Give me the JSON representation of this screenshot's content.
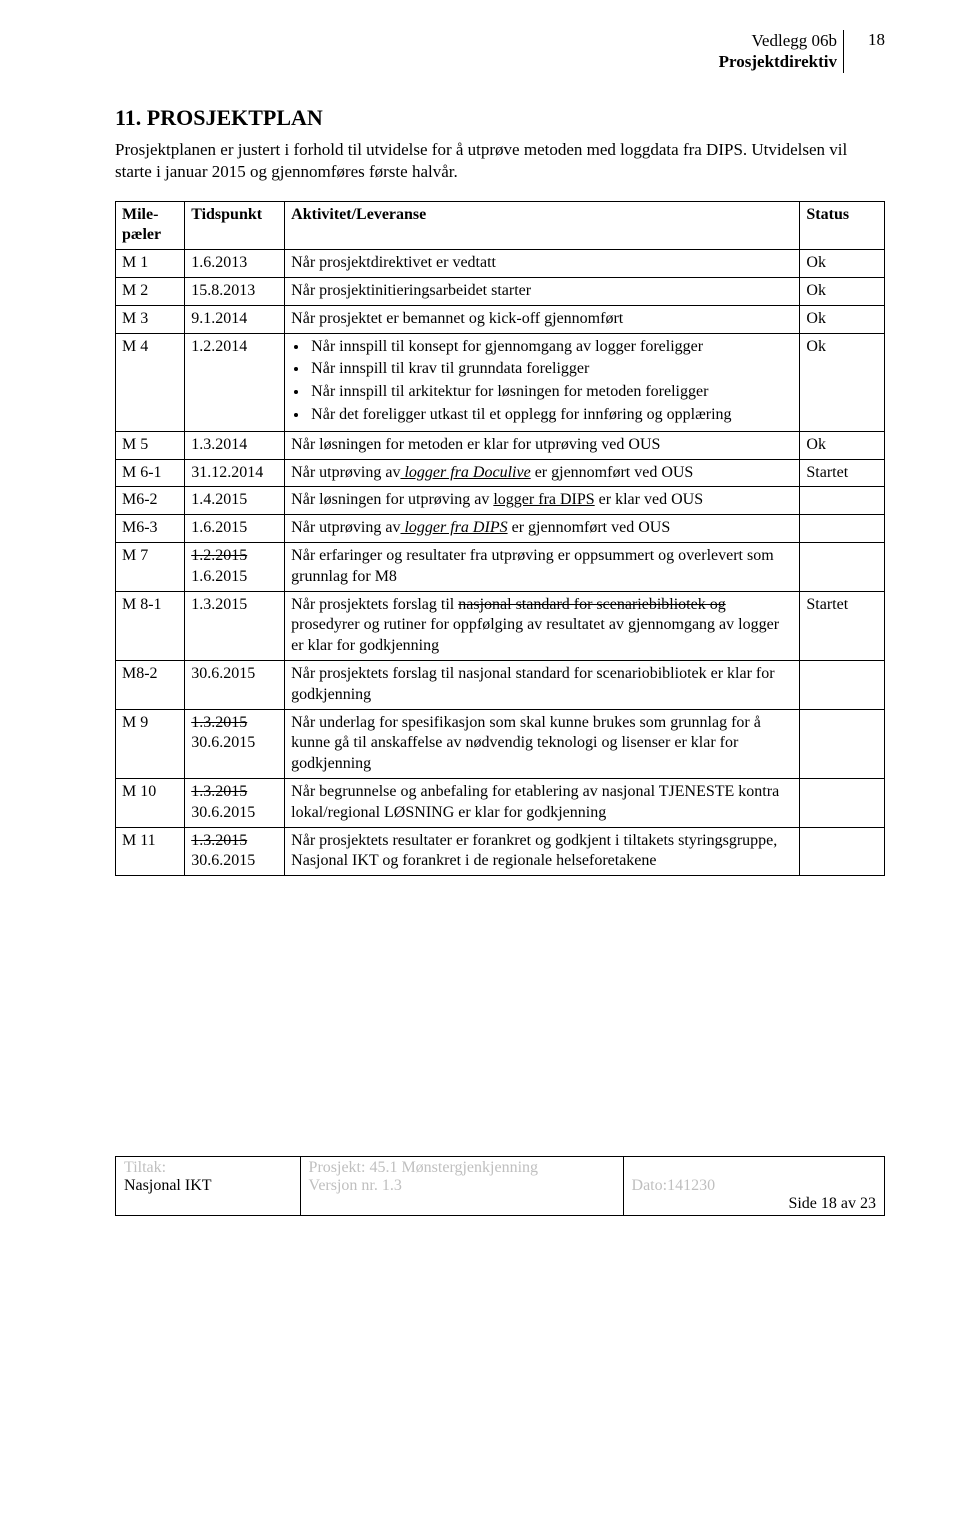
{
  "header": {
    "line1": "Vedlegg 06b",
    "line2": "Prosjektdirektiv",
    "pagenum": "18"
  },
  "section_title": "11.   PROSJEKTPLAN",
  "intro": "Prosjektplanen er justert i forhold til utvidelse for å utprøve metoden med loggdata fra DIPS. Utvidelsen vil starte i januar 2015 og gjennomføres første halvår.",
  "table": {
    "headers": {
      "c0": "Mile-pæler",
      "c1": "Tidspunkt",
      "c2": "Aktivitet/Leveranse",
      "c3": "Status"
    },
    "rows": {
      "m1": {
        "m": "M 1",
        "t": "1.6.2013",
        "a": "Når prosjektdirektivet er vedtatt",
        "s": "Ok"
      },
      "m2": {
        "m": "M 2",
        "t": "15.8.2013",
        "a": "Når prosjektinitieringsarbeidet starter",
        "s": "Ok"
      },
      "m3": {
        "m": "M 3",
        "t": "9.1.2014",
        "a": "Når prosjektet er bemannet og kick-off gjennomført",
        "s": "Ok"
      },
      "m4": {
        "m": "M 4",
        "t": "1.2.2014",
        "s": "Ok",
        "b1": "Når innspill til konsept for gjennomgang av logger foreligger",
        "b2": "Når innspill til krav til grunndata foreligger",
        "b3": "Når innspill til arkitektur for løsningen for metoden foreligger",
        "b4": "Når det foreligger utkast til et opplegg for innføring og opplæring"
      },
      "m5": {
        "m": "M 5",
        "t": "1.3.2014",
        "a": "Når løsningen for metoden er klar for utprøving ved OUS",
        "s": "Ok"
      },
      "m61": {
        "m": "M 6-1",
        "t": "31.12.2014",
        "a_pre": "Når utprøving av",
        "a_u": " logger fra Doculive",
        "a_post": " er gjennomført ved OUS",
        "s": "Startet"
      },
      "m62": {
        "m": "M6-2",
        "t": "1.4.2015",
        "a_pre": "Når løsningen for utprøving av ",
        "a_u": "logger fra DIPS",
        "a_post": " er klar ved OUS",
        "s": ""
      },
      "m63": {
        "m": "M6-3",
        "t": "1.6.2015",
        "a_pre": "Når utprøving av",
        "a_u": " logger fra DIPS",
        "a_post": " er gjennomført ved OUS",
        "s": ""
      },
      "m7": {
        "m": "M 7",
        "t1": "1.2.2015",
        "t2": "1.6.2015",
        "a": "Når erfaringer og resultater fra utprøving er oppsummert og overlevert som grunnlag for M8",
        "s": ""
      },
      "m81": {
        "m": "M 8-1",
        "t": "1.3.2015",
        "a_pre": "Når prosjektets forslag til ",
        "a_strike": "nasjonal standard for scenariebibliotek og",
        "a_post": " prosedyrer og rutiner for oppfølging av resultatet av gjennomgang av logger er klar for godkjenning",
        "s": "Startet"
      },
      "m82": {
        "m": "M8-2",
        "t": "30.6.2015",
        "a": "Når prosjektets forslag til nasjonal standard for scenariobibliotek er klar for godkjenning",
        "s": ""
      },
      "m9": {
        "m": "M 9",
        "t1": "1.3.2015",
        "t2": "30.6.2015",
        "a": "Når underlag for spesifikasjon som skal kunne brukes som grunnlag for å kunne gå til anskaffelse av nødvendig teknologi og lisenser er klar for godkjenning",
        "s": ""
      },
      "m10": {
        "m": "M 10",
        "t1": "1.3.2015",
        "t2": "30.6.2015",
        "a": "Når begrunnelse og anbefaling for etablering av nasjonal TJENESTE kontra lokal/regional LØSNING er klar for godkjenning",
        "s": ""
      },
      "m11": {
        "m": "M 11",
        "t1": "1.3.2015",
        "t2": "30.6.2015",
        "a": "Når prosjektets resultater er forankret og godkjent i tiltakets styringsgruppe, Nasjonal IKT og forankret i de regionale helseforetakene",
        "s": ""
      }
    }
  },
  "footer": {
    "tiltak_label": "Tiltak:",
    "nasjonal": "Nasjonal IKT",
    "prosjekt": "Prosjekt: 45.1 Mønstergjenkjenning",
    "versjon": "Versjon nr. 1.3",
    "dato": "Dato:141230",
    "side": "Side 18 av 23"
  }
}
